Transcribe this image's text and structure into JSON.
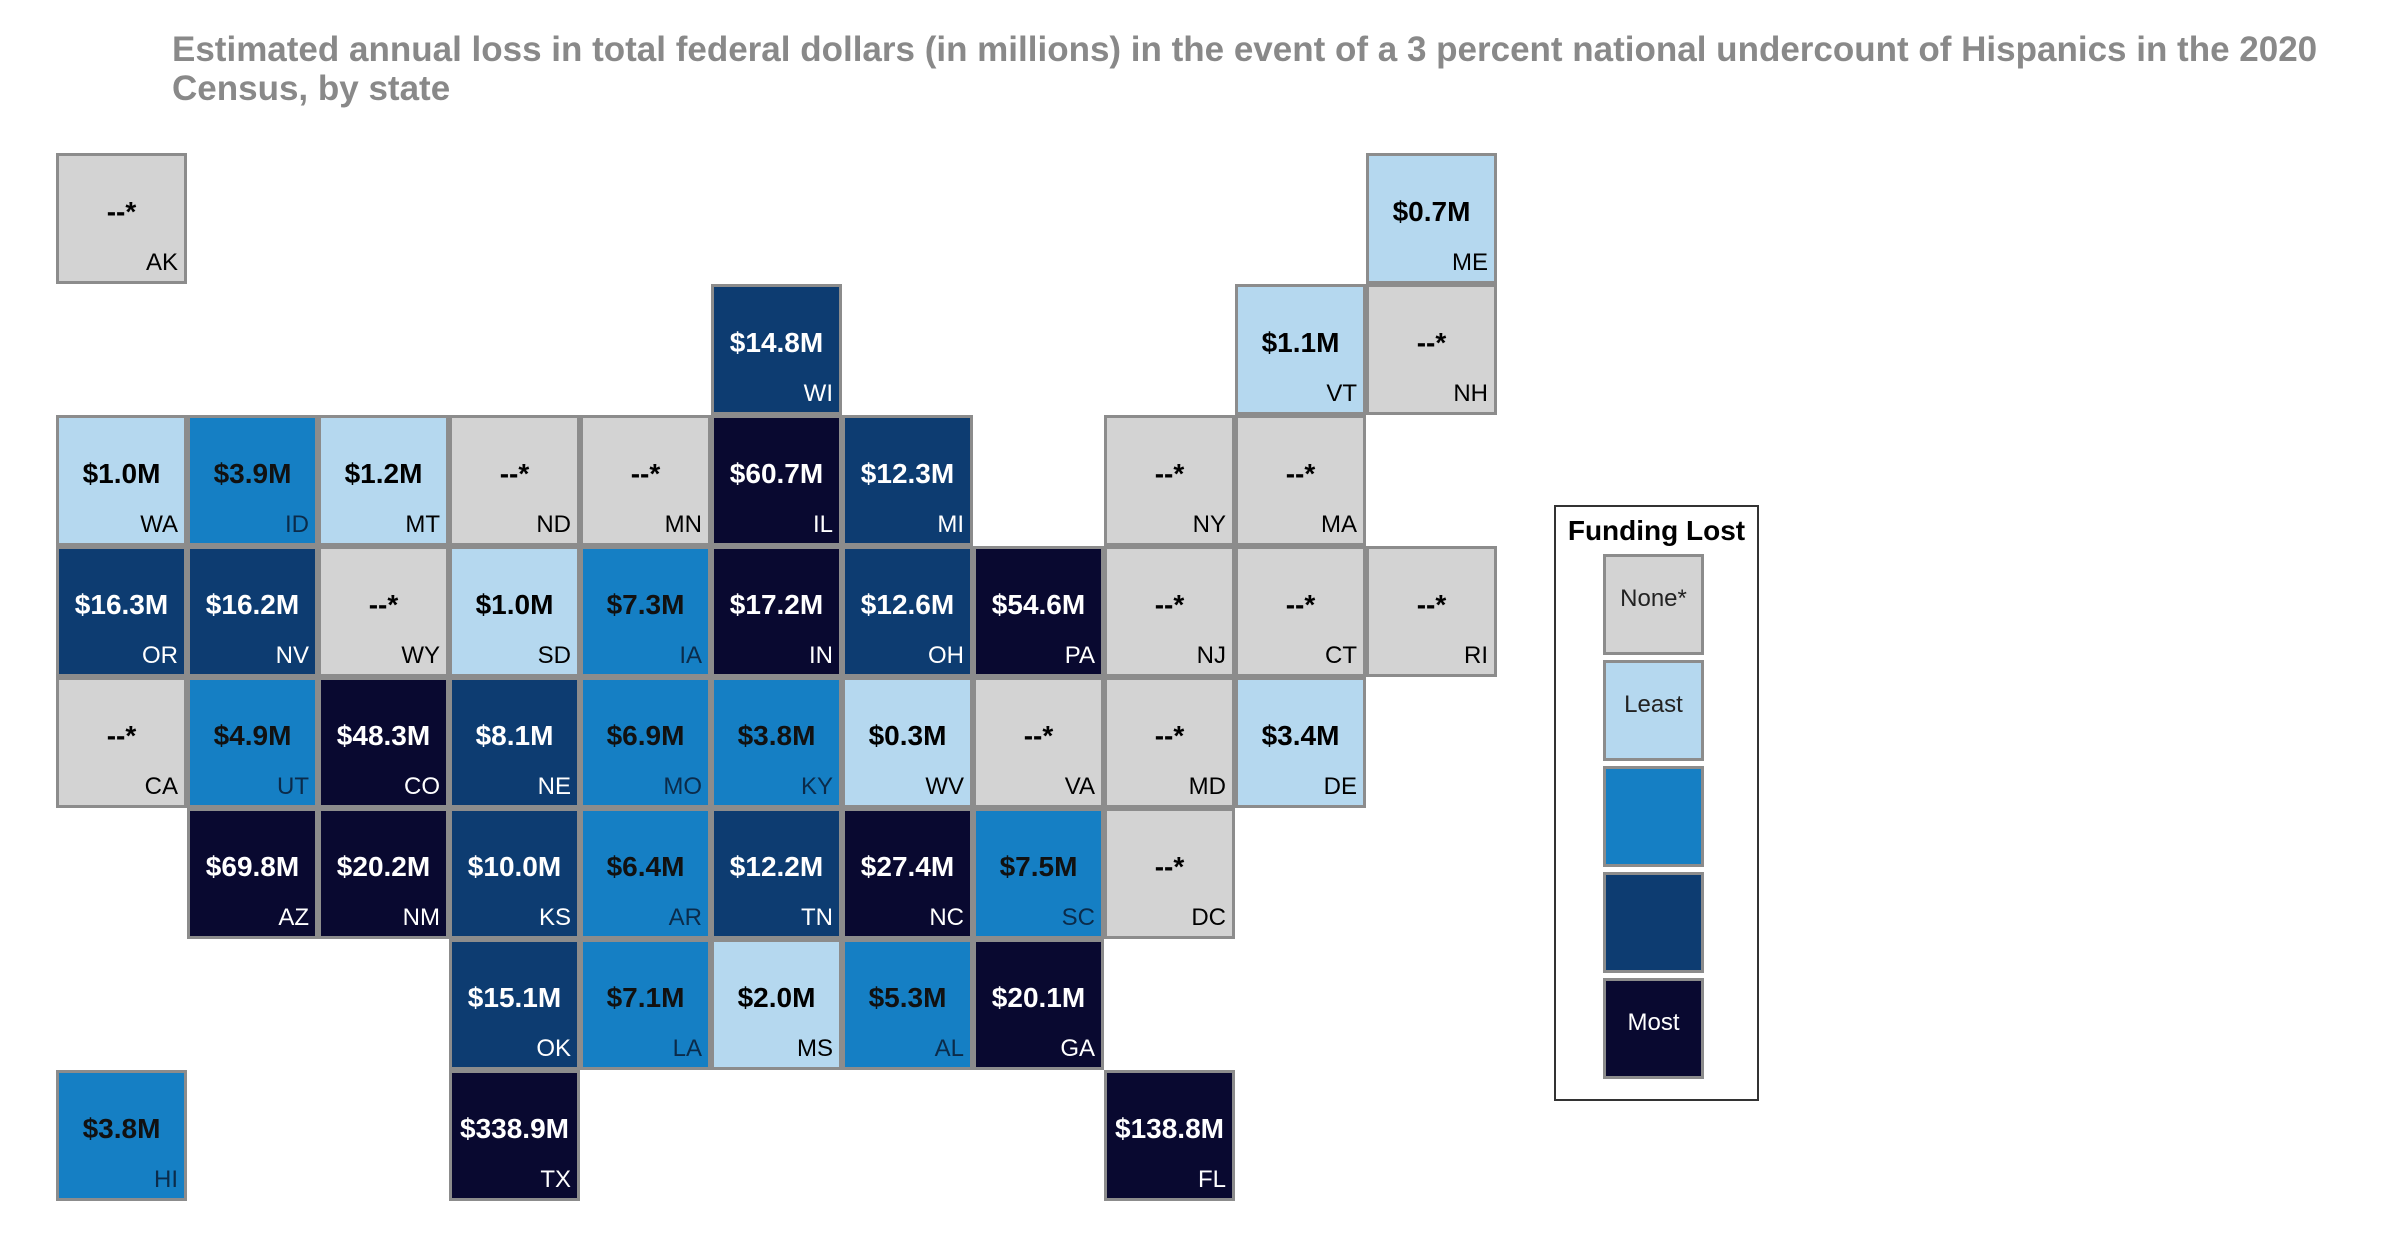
{
  "title": "Estimated annual loss in total federal dollars (in millions) in the event of a 3 percent national undercount of Hispanics in the 2020 Census, by state",
  "legend": {
    "title": "Funding Lost",
    "levels": [
      {
        "label": "None*",
        "color": "#d3d3d3"
      },
      {
        "label": "Least",
        "color": "#b5d8ef"
      },
      {
        "label": "",
        "color": "#157fc4"
      },
      {
        "label": "",
        "color": "#0d3c71"
      },
      {
        "label": "Most",
        "color": "#090930"
      }
    ]
  },
  "states": [
    {
      "abbr": "AK",
      "value": "--*",
      "level": 0,
      "row": 0,
      "col": 0
    },
    {
      "abbr": "ME",
      "value": "$0.7M",
      "level": 1,
      "row": 0,
      "col": 10
    },
    {
      "abbr": "WI",
      "value": "$14.8M",
      "level": 3,
      "row": 1,
      "col": 5
    },
    {
      "abbr": "VT",
      "value": "$1.1M",
      "level": 1,
      "row": 1,
      "col": 9
    },
    {
      "abbr": "NH",
      "value": "--*",
      "level": 0,
      "row": 1,
      "col": 10
    },
    {
      "abbr": "WA",
      "value": "$1.0M",
      "level": 1,
      "row": 2,
      "col": 0
    },
    {
      "abbr": "ID",
      "value": "$3.9M",
      "level": 2,
      "row": 2,
      "col": 1
    },
    {
      "abbr": "MT",
      "value": "$1.2M",
      "level": 1,
      "row": 2,
      "col": 2
    },
    {
      "abbr": "ND",
      "value": "--*",
      "level": 0,
      "row": 2,
      "col": 3
    },
    {
      "abbr": "MN",
      "value": "--*",
      "level": 0,
      "row": 2,
      "col": 4
    },
    {
      "abbr": "IL",
      "value": "$60.7M",
      "level": 4,
      "row": 2,
      "col": 5
    },
    {
      "abbr": "MI",
      "value": "$12.3M",
      "level": 3,
      "row": 2,
      "col": 6
    },
    {
      "abbr": "NY",
      "value": "--*",
      "level": 0,
      "row": 2,
      "col": 8
    },
    {
      "abbr": "MA",
      "value": "--*",
      "level": 0,
      "row": 2,
      "col": 9
    },
    {
      "abbr": "OR",
      "value": "$16.3M",
      "level": 3,
      "row": 3,
      "col": 0
    },
    {
      "abbr": "NV",
      "value": "$16.2M",
      "level": 3,
      "row": 3,
      "col": 1
    },
    {
      "abbr": "WY",
      "value": "--*",
      "level": 0,
      "row": 3,
      "col": 2
    },
    {
      "abbr": "SD",
      "value": "$1.0M",
      "level": 1,
      "row": 3,
      "col": 3
    },
    {
      "abbr": "IA",
      "value": "$7.3M",
      "level": 2,
      "row": 3,
      "col": 4
    },
    {
      "abbr": "IN",
      "value": "$17.2M",
      "level": 4,
      "row": 3,
      "col": 5
    },
    {
      "abbr": "OH",
      "value": "$12.6M",
      "level": 3,
      "row": 3,
      "col": 6
    },
    {
      "abbr": "PA",
      "value": "$54.6M",
      "level": 4,
      "row": 3,
      "col": 7
    },
    {
      "abbr": "NJ",
      "value": "--*",
      "level": 0,
      "row": 3,
      "col": 8
    },
    {
      "abbr": "CT",
      "value": "--*",
      "level": 0,
      "row": 3,
      "col": 9
    },
    {
      "abbr": "RI",
      "value": "--*",
      "level": 0,
      "row": 3,
      "col": 10
    },
    {
      "abbr": "CA",
      "value": "--*",
      "level": 0,
      "row": 4,
      "col": 0
    },
    {
      "abbr": "UT",
      "value": "$4.9M",
      "level": 2,
      "row": 4,
      "col": 1
    },
    {
      "abbr": "CO",
      "value": "$48.3M",
      "level": 4,
      "row": 4,
      "col": 2
    },
    {
      "abbr": "NE",
      "value": "$8.1M",
      "level": 3,
      "row": 4,
      "col": 3
    },
    {
      "abbr": "MO",
      "value": "$6.9M",
      "level": 2,
      "row": 4,
      "col": 4
    },
    {
      "abbr": "KY",
      "value": "$3.8M",
      "level": 2,
      "row": 4,
      "col": 5
    },
    {
      "abbr": "WV",
      "value": "$0.3M",
      "level": 1,
      "row": 4,
      "col": 6
    },
    {
      "abbr": "VA",
      "value": "--*",
      "level": 0,
      "row": 4,
      "col": 7
    },
    {
      "abbr": "MD",
      "value": "--*",
      "level": 0,
      "row": 4,
      "col": 8
    },
    {
      "abbr": "DE",
      "value": "$3.4M",
      "level": 1,
      "row": 4,
      "col": 9
    },
    {
      "abbr": "AZ",
      "value": "$69.8M",
      "level": 4,
      "row": 5,
      "col": 1
    },
    {
      "abbr": "NM",
      "value": "$20.2M",
      "level": 4,
      "row": 5,
      "col": 2
    },
    {
      "abbr": "KS",
      "value": "$10.0M",
      "level": 3,
      "row": 5,
      "col": 3
    },
    {
      "abbr": "AR",
      "value": "$6.4M",
      "level": 2,
      "row": 5,
      "col": 4
    },
    {
      "abbr": "TN",
      "value": "$12.2M",
      "level": 3,
      "row": 5,
      "col": 5
    },
    {
      "abbr": "NC",
      "value": "$27.4M",
      "level": 4,
      "row": 5,
      "col": 6
    },
    {
      "abbr": "SC",
      "value": "$7.5M",
      "level": 2,
      "row": 5,
      "col": 7
    },
    {
      "abbr": "DC",
      "value": "--*",
      "level": 0,
      "row": 5,
      "col": 8
    },
    {
      "abbr": "OK",
      "value": "$15.1M",
      "level": 3,
      "row": 6,
      "col": 3
    },
    {
      "abbr": "LA",
      "value": "$7.1M",
      "level": 2,
      "row": 6,
      "col": 4
    },
    {
      "abbr": "MS",
      "value": "$2.0M",
      "level": 1,
      "row": 6,
      "col": 5
    },
    {
      "abbr": "AL",
      "value": "$5.3M",
      "level": 2,
      "row": 6,
      "col": 6
    },
    {
      "abbr": "GA",
      "value": "$20.1M",
      "level": 4,
      "row": 6,
      "col": 7
    },
    {
      "abbr": "HI",
      "value": "$3.8M",
      "level": 2,
      "row": 7,
      "col": 0
    },
    {
      "abbr": "TX",
      "value": "$338.9M",
      "level": 4,
      "row": 7,
      "col": 3
    },
    {
      "abbr": "FL",
      "value": "$138.8M",
      "level": 4,
      "row": 7,
      "col": 8
    }
  ]
}
